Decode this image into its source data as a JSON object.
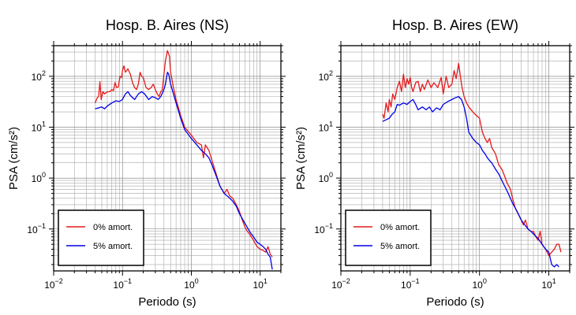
{
  "chart_data": [
    {
      "type": "line",
      "title": "Hosp. B. Aires (NS)",
      "xlabel": "Periodo (s)",
      "ylabel": "PSA (cm/s²)",
      "xscale": "log",
      "yscale": "log",
      "xlim": [
        0.01,
        20
      ],
      "ylim": [
        0.015,
        400
      ],
      "grid": true,
      "legend_position": "bottom-left",
      "x_ticks": [
        {
          "base": "10",
          "exp": "−2"
        },
        {
          "base": "10",
          "exp": "−1"
        },
        {
          "base": "10",
          "exp": "0"
        },
        {
          "base": "10",
          "exp": "1"
        }
      ],
      "y_ticks": [
        {
          "base": "10",
          "exp": "−1"
        },
        {
          "base": "10",
          "exp": "0"
        },
        {
          "base": "10",
          "exp": "1"
        },
        {
          "base": "10",
          "exp": "2"
        }
      ],
      "series": [
        {
          "name": "0% amort.",
          "color": "#e41a1c",
          "points": [
            [
              0.04,
              30
            ],
            [
              0.043,
              38
            ],
            [
              0.045,
              40
            ],
            [
              0.047,
              78
            ],
            [
              0.049,
              35
            ],
            [
              0.052,
              50
            ],
            [
              0.055,
              45
            ],
            [
              0.058,
              48
            ],
            [
              0.062,
              50
            ],
            [
              0.066,
              50
            ],
            [
              0.07,
              55
            ],
            [
              0.074,
              52
            ],
            [
              0.078,
              75
            ],
            [
              0.082,
              60
            ],
            [
              0.087,
              62
            ],
            [
              0.092,
              100
            ],
            [
              0.097,
              95
            ],
            [
              0.1,
              130
            ],
            [
              0.105,
              160
            ],
            [
              0.11,
              120
            ],
            [
              0.115,
              130
            ],
            [
              0.12,
              140
            ],
            [
              0.13,
              110
            ],
            [
              0.14,
              75
            ],
            [
              0.15,
              60
            ],
            [
              0.16,
              55
            ],
            [
              0.17,
              70
            ],
            [
              0.18,
              120
            ],
            [
              0.19,
              100
            ],
            [
              0.2,
              95
            ],
            [
              0.21,
              75
            ],
            [
              0.22,
              60
            ],
            [
              0.24,
              55
            ],
            [
              0.26,
              60
            ],
            [
              0.28,
              70
            ],
            [
              0.3,
              55
            ],
            [
              0.32,
              45
            ],
            [
              0.34,
              40
            ],
            [
              0.36,
              50
            ],
            [
              0.38,
              55
            ],
            [
              0.4,
              110
            ],
            [
              0.42,
              200
            ],
            [
              0.45,
              320
            ],
            [
              0.48,
              250
            ],
            [
              0.5,
              120
            ],
            [
              0.55,
              60
            ],
            [
              0.6,
              35
            ],
            [
              0.7,
              17
            ],
            [
              0.8,
              10
            ],
            [
              1.0,
              7
            ],
            [
              1.2,
              5
            ],
            [
              1.4,
              4.5
            ],
            [
              1.5,
              2.5
            ],
            [
              1.6,
              4.5
            ],
            [
              1.8,
              3.5
            ],
            [
              2.0,
              2.2
            ],
            [
              2.3,
              1.2
            ],
            [
              2.6,
              0.7
            ],
            [
              3.0,
              0.5
            ],
            [
              3.3,
              0.6
            ],
            [
              3.6,
              0.45
            ],
            [
              4.0,
              0.4
            ],
            [
              4.5,
              0.3
            ],
            [
              5.0,
              0.22
            ],
            [
              5.5,
              0.15
            ],
            [
              6.0,
              0.11
            ],
            [
              6.5,
              0.09
            ],
            [
              7.0,
              0.08
            ],
            [
              8.0,
              0.06
            ],
            [
              9.0,
              0.045
            ],
            [
              10,
              0.04
            ],
            [
              11,
              0.038
            ],
            [
              12,
              0.035
            ],
            [
              13,
              0.045
            ],
            [
              14,
              0.032
            ],
            [
              15,
              0.028
            ]
          ]
        },
        {
          "name": "5% amort.",
          "color": "#0000e6",
          "points": [
            [
              0.04,
              23
            ],
            [
              0.045,
              24
            ],
            [
              0.05,
              25
            ],
            [
              0.055,
              23
            ],
            [
              0.06,
              26
            ],
            [
              0.07,
              30
            ],
            [
              0.08,
              33
            ],
            [
              0.09,
              32
            ],
            [
              0.1,
              35
            ],
            [
              0.11,
              45
            ],
            [
              0.12,
              50
            ],
            [
              0.13,
              42
            ],
            [
              0.15,
              35
            ],
            [
              0.17,
              45
            ],
            [
              0.19,
              50
            ],
            [
              0.21,
              45
            ],
            [
              0.24,
              35
            ],
            [
              0.27,
              40
            ],
            [
              0.3,
              38
            ],
            [
              0.33,
              35
            ],
            [
              0.36,
              40
            ],
            [
              0.4,
              55
            ],
            [
              0.42,
              70
            ],
            [
              0.45,
              120
            ],
            [
              0.47,
              110
            ],
            [
              0.5,
              70
            ],
            [
              0.55,
              45
            ],
            [
              0.6,
              30
            ],
            [
              0.7,
              15
            ],
            [
              0.8,
              9
            ],
            [
              1.0,
              6
            ],
            [
              1.2,
              4.5
            ],
            [
              1.4,
              3.5
            ],
            [
              1.6,
              3
            ],
            [
              1.8,
              2.5
            ],
            [
              2.0,
              1.8
            ],
            [
              2.3,
              1.1
            ],
            [
              2.6,
              0.7
            ],
            [
              3.0,
              0.5
            ],
            [
              3.5,
              0.42
            ],
            [
              4.0,
              0.35
            ],
            [
              4.5,
              0.28
            ],
            [
              5.0,
              0.2
            ],
            [
              6.0,
              0.13
            ],
            [
              7.0,
              0.09
            ],
            [
              8.0,
              0.07
            ],
            [
              9.0,
              0.055
            ],
            [
              10,
              0.05
            ],
            [
              11,
              0.045
            ],
            [
              12,
              0.04
            ],
            [
              13,
              0.032
            ],
            [
              14,
              0.028
            ],
            [
              15,
              0.016
            ]
          ]
        }
      ]
    },
    {
      "type": "line",
      "title": "Hosp. B. Aires (EW)",
      "xlabel": "Periodo (s)",
      "ylabel": "PSA (cm/s²)",
      "xscale": "log",
      "yscale": "log",
      "xlim": [
        0.01,
        20
      ],
      "ylim": [
        0.015,
        400
      ],
      "grid": true,
      "legend_position": "bottom-left",
      "x_ticks": [
        {
          "base": "10",
          "exp": "−2"
        },
        {
          "base": "10",
          "exp": "−1"
        },
        {
          "base": "10",
          "exp": "0"
        },
        {
          "base": "10",
          "exp": "1"
        }
      ],
      "y_ticks": [
        {
          "base": "10",
          "exp": "−1"
        },
        {
          "base": "10",
          "exp": "0"
        },
        {
          "base": "10",
          "exp": "1"
        },
        {
          "base": "10",
          "exp": "2"
        }
      ],
      "series": [
        {
          "name": "0% amort.",
          "color": "#e41a1c",
          "points": [
            [
              0.04,
              18
            ],
            [
              0.042,
              15
            ],
            [
              0.045,
              30
            ],
            [
              0.048,
              20
            ],
            [
              0.05,
              35
            ],
            [
              0.053,
              25
            ],
            [
              0.056,
              45
            ],
            [
              0.06,
              35
            ],
            [
              0.065,
              60
            ],
            [
              0.07,
              80
            ],
            [
              0.075,
              50
            ],
            [
              0.08,
              110
            ],
            [
              0.085,
              60
            ],
            [
              0.09,
              90
            ],
            [
              0.095,
              70
            ],
            [
              0.1,
              95
            ],
            [
              0.105,
              60
            ],
            [
              0.11,
              50
            ],
            [
              0.12,
              75
            ],
            [
              0.13,
              80
            ],
            [
              0.14,
              50
            ],
            [
              0.15,
              70
            ],
            [
              0.16,
              55
            ],
            [
              0.18,
              85
            ],
            [
              0.2,
              60
            ],
            [
              0.22,
              75
            ],
            [
              0.25,
              60
            ],
            [
              0.28,
              95
            ],
            [
              0.3,
              45
            ],
            [
              0.33,
              100
            ],
            [
              0.36,
              60
            ],
            [
              0.4,
              70
            ],
            [
              0.43,
              130
            ],
            [
              0.46,
              90
            ],
            [
              0.5,
              180
            ],
            [
              0.53,
              100
            ],
            [
              0.56,
              60
            ],
            [
              0.6,
              40
            ],
            [
              0.65,
              30
            ],
            [
              0.7,
              25
            ],
            [
              0.8,
              20
            ],
            [
              0.9,
              17
            ],
            [
              1.0,
              15
            ],
            [
              1.1,
              8
            ],
            [
              1.2,
              6
            ],
            [
              1.3,
              5
            ],
            [
              1.4,
              6
            ],
            [
              1.5,
              4
            ],
            [
              1.7,
              3
            ],
            [
              1.9,
              1.8
            ],
            [
              2.1,
              1.5
            ],
            [
              2.3,
              1.1
            ],
            [
              2.5,
              0.8
            ],
            [
              2.8,
              0.6
            ],
            [
              3.0,
              0.4
            ],
            [
              3.3,
              0.25
            ],
            [
              3.6,
              0.2
            ],
            [
              4.0,
              0.15
            ],
            [
              4.3,
              0.12
            ],
            [
              4.6,
              0.15
            ],
            [
              5.0,
              0.1
            ],
            [
              5.5,
              0.09
            ],
            [
              6.0,
              0.09
            ],
            [
              6.5,
              0.07
            ],
            [
              7.0,
              0.06
            ],
            [
              7.5,
              0.09
            ],
            [
              8.0,
              0.05
            ],
            [
              9.0,
              0.04
            ],
            [
              10,
              0.03
            ],
            [
              11,
              0.035
            ],
            [
              12,
              0.04
            ],
            [
              13,
              0.05
            ],
            [
              14,
              0.05
            ],
            [
              15,
              0.035
            ]
          ]
        },
        {
          "name": "5% amort.",
          "color": "#0000e6",
          "points": [
            [
              0.04,
              13
            ],
            [
              0.045,
              14
            ],
            [
              0.05,
              15
            ],
            [
              0.055,
              18
            ],
            [
              0.06,
              20
            ],
            [
              0.065,
              28
            ],
            [
              0.07,
              27
            ],
            [
              0.08,
              30
            ],
            [
              0.09,
              28
            ],
            [
              0.1,
              32
            ],
            [
              0.11,
              35
            ],
            [
              0.12,
              28
            ],
            [
              0.13,
              22
            ],
            [
              0.15,
              25
            ],
            [
              0.17,
              22
            ],
            [
              0.19,
              25
            ],
            [
              0.21,
              20
            ],
            [
              0.24,
              24
            ],
            [
              0.27,
              22
            ],
            [
              0.3,
              28
            ],
            [
              0.35,
              32
            ],
            [
              0.4,
              35
            ],
            [
              0.45,
              38
            ],
            [
              0.5,
              40
            ],
            [
              0.55,
              35
            ],
            [
              0.6,
              25
            ],
            [
              0.65,
              15
            ],
            [
              0.7,
              8
            ],
            [
              0.8,
              6
            ],
            [
              0.9,
              5
            ],
            [
              1.0,
              4.5
            ],
            [
              1.1,
              3.5
            ],
            [
              1.2,
              3
            ],
            [
              1.3,
              2.5
            ],
            [
              1.4,
              2.2
            ],
            [
              1.5,
              2
            ],
            [
              1.7,
              1.5
            ],
            [
              1.9,
              1.2
            ],
            [
              2.1,
              0.9
            ],
            [
              2.3,
              0.7
            ],
            [
              2.6,
              0.5
            ],
            [
              3.0,
              0.32
            ],
            [
              3.5,
              0.22
            ],
            [
              4.0,
              0.15
            ],
            [
              4.5,
              0.12
            ],
            [
              5.0,
              0.1
            ],
            [
              5.5,
              0.09
            ],
            [
              6.0,
              0.08
            ],
            [
              7.0,
              0.065
            ],
            [
              8.0,
              0.05
            ],
            [
              9.0,
              0.04
            ],
            [
              10,
              0.035
            ],
            [
              11,
              0.02
            ],
            [
              12,
              0.018
            ],
            [
              13,
              0.02
            ],
            [
              14,
              0.018
            ]
          ]
        }
      ]
    }
  ]
}
